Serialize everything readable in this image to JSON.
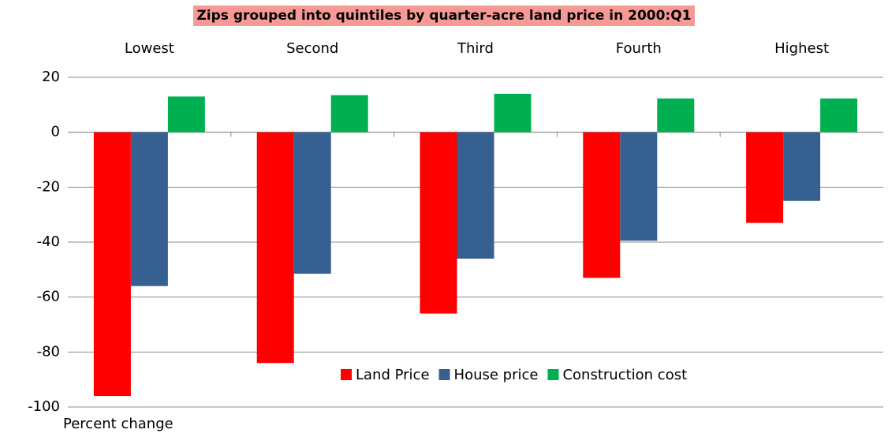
{
  "chart_data": {
    "type": "bar",
    "title": "Zips grouped into quintiles by quarter-acre land price in 2000:Q1",
    "y_label": "Percent change",
    "categories": [
      "Lowest",
      "Second",
      "Third",
      "Fourth",
      "Highest"
    ],
    "series": [
      {
        "name": "Land Price",
        "color": "#ff0000",
        "values": [
          -96,
          -84,
          -66,
          -53,
          -33
        ]
      },
      {
        "name": "House price",
        "color": "#376092",
        "values": [
          -56,
          -51.5,
          -46,
          -39.5,
          -25
        ]
      },
      {
        "name": "Construction cost",
        "color": "#00b050",
        "values": [
          13,
          13.5,
          14,
          12.3,
          12.3
        ]
      }
    ],
    "ylim": [
      -100,
      20
    ],
    "yticks": [
      -100,
      -80,
      -60,
      -40,
      -20,
      0,
      20
    ],
    "grid": true
  }
}
